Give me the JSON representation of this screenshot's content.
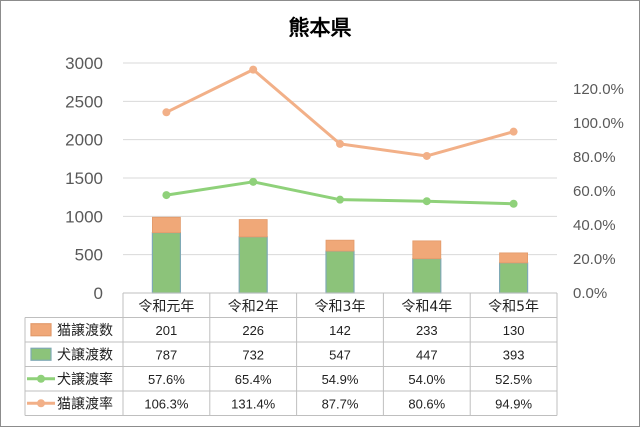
{
  "title": "熊本県",
  "chart_data": {
    "type": "bar",
    "stacked": true,
    "categories": [
      "令和元年",
      "令和2年",
      "令和3年",
      "令和4年",
      "令和5年"
    ],
    "series": [
      {
        "name": "猫譲渡数",
        "kind": "bar",
        "axis": "left",
        "color": "#f0a878",
        "values": [
          201,
          226,
          142,
          233,
          130
        ],
        "labels": [
          "201",
          "226",
          "142",
          "233",
          "130"
        ]
      },
      {
        "name": "犬譲渡数",
        "kind": "bar",
        "axis": "left",
        "color": "#8cc37a",
        "values": [
          787,
          732,
          547,
          447,
          393
        ],
        "labels": [
          "787",
          "732",
          "547",
          "447",
          "393"
        ]
      },
      {
        "name": "犬譲渡率",
        "kind": "line",
        "axis": "right",
        "color": "#8fd17a",
        "values": [
          57.6,
          65.4,
          54.9,
          54.0,
          52.5
        ],
        "labels": [
          "57.6%",
          "65.4%",
          "54.9%",
          "54.0%",
          "52.5%"
        ]
      },
      {
        "name": "猫譲渡率",
        "kind": "line",
        "axis": "right",
        "color": "#f2b088",
        "values": [
          106.3,
          131.4,
          87.7,
          80.6,
          94.9
        ],
        "labels": [
          "106.3%",
          "131.4%",
          "87.7%",
          "80.6%",
          "94.9%"
        ]
      }
    ],
    "y_left": {
      "min": 0,
      "max": 3000,
      "ticks": [
        "0",
        "500",
        "1000",
        "1500",
        "2000",
        "2500",
        "3000"
      ]
    },
    "y_right": {
      "min": 0,
      "max": 135,
      "ticks": [
        "0.0%",
        "20.0%",
        "40.0%",
        "60.0%",
        "80.0%",
        "100.0%",
        "120.0%"
      ],
      "tick_values": [
        0,
        20,
        40,
        60,
        80,
        100,
        120
      ]
    },
    "grid": true,
    "legend": "data-table"
  }
}
